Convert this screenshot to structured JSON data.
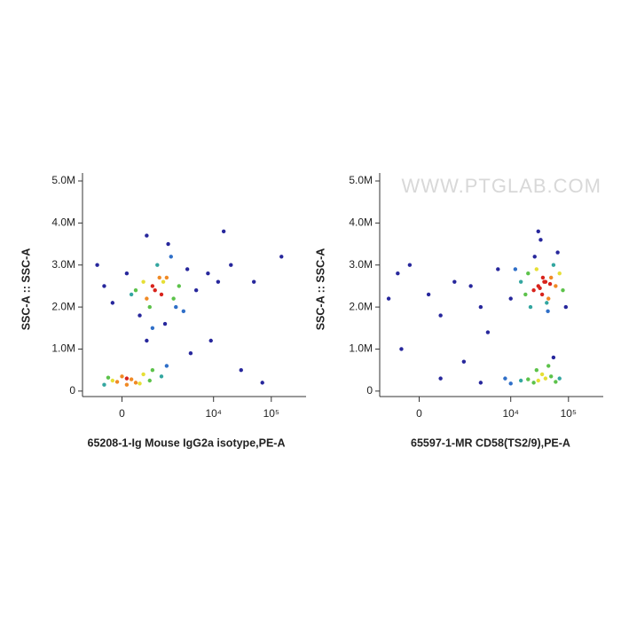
{
  "chart_data": [
    {
      "type": "scatter",
      "xscale": "biexponential",
      "xlabel": "65208-1-Ig Mouse IgG2a isotype,PE-A",
      "ylabel": "SSC-A :: SSC-A",
      "xlim": [
        -1200,
        400000
      ],
      "ylim": [
        -130000,
        5190000
      ],
      "xticks": [
        0,
        {
          "value": 10000,
          "label": "10⁴"
        },
        {
          "value": 100000,
          "label": "10⁵"
        }
      ],
      "yticks": [
        0,
        {
          "value": 1000000,
          "label": "1.0M"
        },
        {
          "value": 2000000,
          "label": "2.0M"
        },
        {
          "value": 3000000,
          "label": "3.0M"
        },
        {
          "value": 4000000,
          "label": "4.0M"
        },
        {
          "value": 5000000,
          "label": "5.0M"
        }
      ],
      "x": [
        300,
        800,
        1200,
        500,
        1500,
        2000,
        -200,
        100,
        700,
        1000,
        2500,
        3500,
        400,
        1800,
        -400,
        900,
        1300,
        600,
        1100,
        200,
        5000,
        8000,
        12000,
        3000,
        1600,
        600,
        -600,
        2200,
        1400,
        800,
        -200,
        100,
        300,
        0,
        -400,
        500,
        200,
        -100,
        800,
        1500,
        400,
        -300,
        700,
        100,
        1200,
        20000,
        50000,
        9000,
        30000,
        150000,
        4000,
        600,
        70000,
        15000
      ],
      "values": [
        2400000,
        2500000,
        2300000,
        2600000,
        2700000,
        2200000,
        2100000,
        2800000,
        2000000,
        3000000,
        2500000,
        2900000,
        1800000,
        3200000,
        2500000,
        2400000,
        2600000,
        2200000,
        2700000,
        2300000,
        2400000,
        2800000,
        2600000,
        1900000,
        3500000,
        3700000,
        3000000,
        2000000,
        1600000,
        1500000,
        250000,
        300000,
        200000,
        350000,
        150000,
        400000,
        280000,
        220000,
        500000,
        600000,
        180000,
        320000,
        250000,
        150000,
        350000,
        3000000,
        2600000,
        1200000,
        500000,
        3200000,
        900000,
        1200000,
        200000,
        3800000
      ]
    },
    {
      "type": "scatter",
      "xscale": "biexponential",
      "xlabel": "65597-1-MR CD58(TS2/9),PE-A",
      "ylabel": "SSC-A :: SSC-A",
      "watermark": "WWW.PTGLAB.COM",
      "xlim": [
        -1200,
        400000
      ],
      "ylim": [
        -130000,
        5190000
      ],
      "xticks": [
        0,
        {
          "value": 10000,
          "label": "10⁴"
        },
        {
          "value": 100000,
          "label": "10⁵"
        }
      ],
      "yticks": [
        0,
        {
          "value": 1000000,
          "label": "1.0M"
        },
        {
          "value": 2000000,
          "label": "2.0M"
        },
        {
          "value": 3000000,
          "label": "3.0M"
        },
        {
          "value": 4000000,
          "label": "4.0M"
        },
        {
          "value": 5000000,
          "label": "5.0M"
        }
      ],
      "x": [
        30000,
        40000,
        25000,
        50000,
        35000,
        20000,
        60000,
        45000,
        28000,
        38000,
        32000,
        55000,
        18000,
        70000,
        42000,
        26000,
        15000,
        80000,
        36000,
        48000,
        22000,
        65000,
        12000,
        33000,
        90000,
        10000,
        44000,
        30000,
        30000,
        40000,
        25000,
        50000,
        20000,
        60000,
        35000,
        15000,
        45000,
        70000,
        10000,
        28000,
        8000,
        55000,
        -500,
        200,
        1000,
        3000,
        -200,
        500,
        2000,
        -800,
        4000,
        1500,
        500,
        3000,
        6000,
        -400
      ],
      "values": [
        2500000,
        2600000,
        2400000,
        2700000,
        2300000,
        2800000,
        2500000,
        2200000,
        2900000,
        2600000,
        2450000,
        3000000,
        2300000,
        2800000,
        2100000,
        3200000,
        2600000,
        2400000,
        2700000,
        2550000,
        2000000,
        3300000,
        2900000,
        3600000,
        2000000,
        2200000,
        1900000,
        3800000,
        250000,
        300000,
        200000,
        350000,
        280000,
        220000,
        400000,
        250000,
        600000,
        300000,
        180000,
        500000,
        300000,
        800000,
        2800000,
        2300000,
        2600000,
        2000000,
        3000000,
        1800000,
        2500000,
        2200000,
        1400000,
        700000,
        300000,
        200000,
        2900000,
        1000000
      ]
    }
  ]
}
